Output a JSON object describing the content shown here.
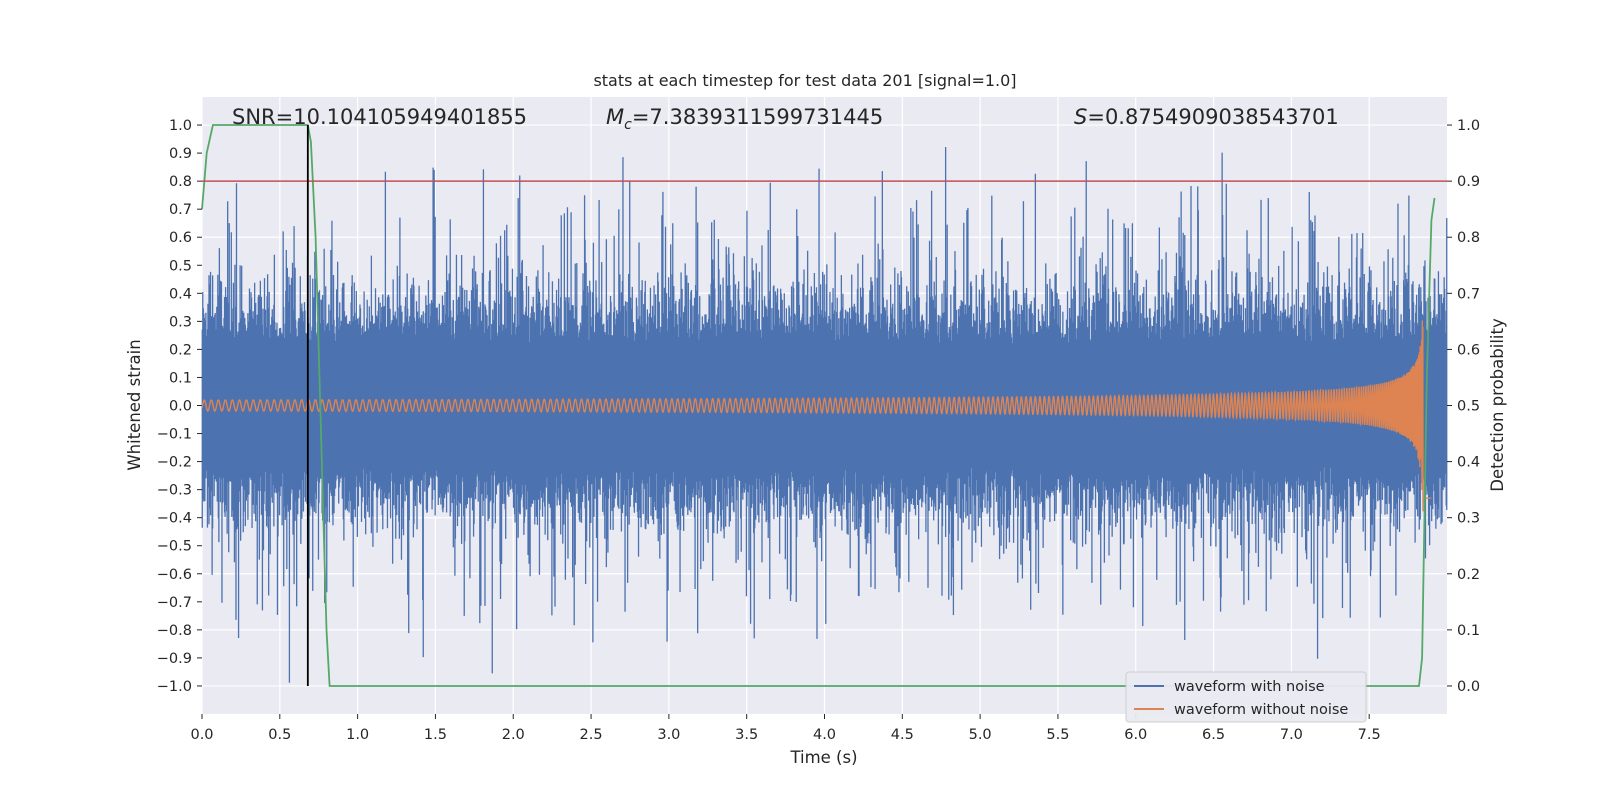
{
  "chart_data": {
    "type": "line",
    "title": "stats at each timestep for test data 201 [signal=1.0]",
    "annotations": {
      "snr": "SNR=10.104105949401855",
      "mc_symbol": "M",
      "mc_subscript": "c",
      "mc_value": "=7.3839311599731445",
      "s_symbol": "S",
      "s_value": "=0.8754909038543701"
    },
    "xlabel": "Time (s)",
    "ylabel_left": "Whitened strain",
    "ylabel_right": "Detection probability",
    "xlim": [
      0.0,
      8.0
    ],
    "ylim_left": [
      -1.1,
      1.1
    ],
    "ylim_right": [
      -0.05,
      1.05
    ],
    "x_ticks": [
      "0.0",
      "0.5",
      "1.0",
      "1.5",
      "2.0",
      "2.5",
      "3.0",
      "3.5",
      "4.0",
      "4.5",
      "5.0",
      "5.5",
      "6.0",
      "6.5",
      "7.0",
      "7.5"
    ],
    "y_ticks_left": [
      "1.0",
      "0.9",
      "0.8",
      "0.7",
      "0.6",
      "0.5",
      "0.4",
      "0.3",
      "0.2",
      "0.1",
      "0.0",
      "−0.1",
      "−0.2",
      "−0.3",
      "−0.4",
      "−0.5",
      "−0.6",
      "−0.7",
      "−0.8",
      "−0.9",
      "−1.0"
    ],
    "y_ticks_right": [
      "1.0",
      "0.9",
      "0.8",
      "0.7",
      "0.6",
      "0.5",
      "0.4",
      "0.3",
      "0.2",
      "0.1",
      "0.0"
    ],
    "threshold": 0.9,
    "vline_x": 0.68,
    "merger_time": 7.85,
    "legend": [
      "waveform with noise",
      "waveform without noise"
    ],
    "series": [
      {
        "name": "waveform with noise",
        "note": "whitened noisy strain, mostly within ±0.4, peaks to ±1.0"
      },
      {
        "name": "waveform without noise",
        "note": "chirp signal, amplitude ~0.01 growing to ~0.38 at merger near 7.85 s"
      },
      {
        "name": "detection probability",
        "x": [
          0.0,
          0.03,
          0.07,
          0.3,
          0.68,
          0.7,
          0.73,
          0.8,
          0.82,
          7.82,
          7.84,
          7.87,
          7.9,
          7.92
        ],
        "values": [
          0.85,
          0.95,
          1.0,
          1.0,
          1.0,
          0.97,
          0.8,
          0.1,
          0.0,
          0.0,
          0.05,
          0.55,
          0.83,
          0.87
        ]
      }
    ],
    "colors": {
      "noisy": "#4c72b0",
      "clean": "#dd8452",
      "prob": "#55a868",
      "threshold": "#c44e52",
      "vline": "#000000",
      "plot_bg": "#eaeaf2",
      "grid": "#ffffff"
    }
  }
}
